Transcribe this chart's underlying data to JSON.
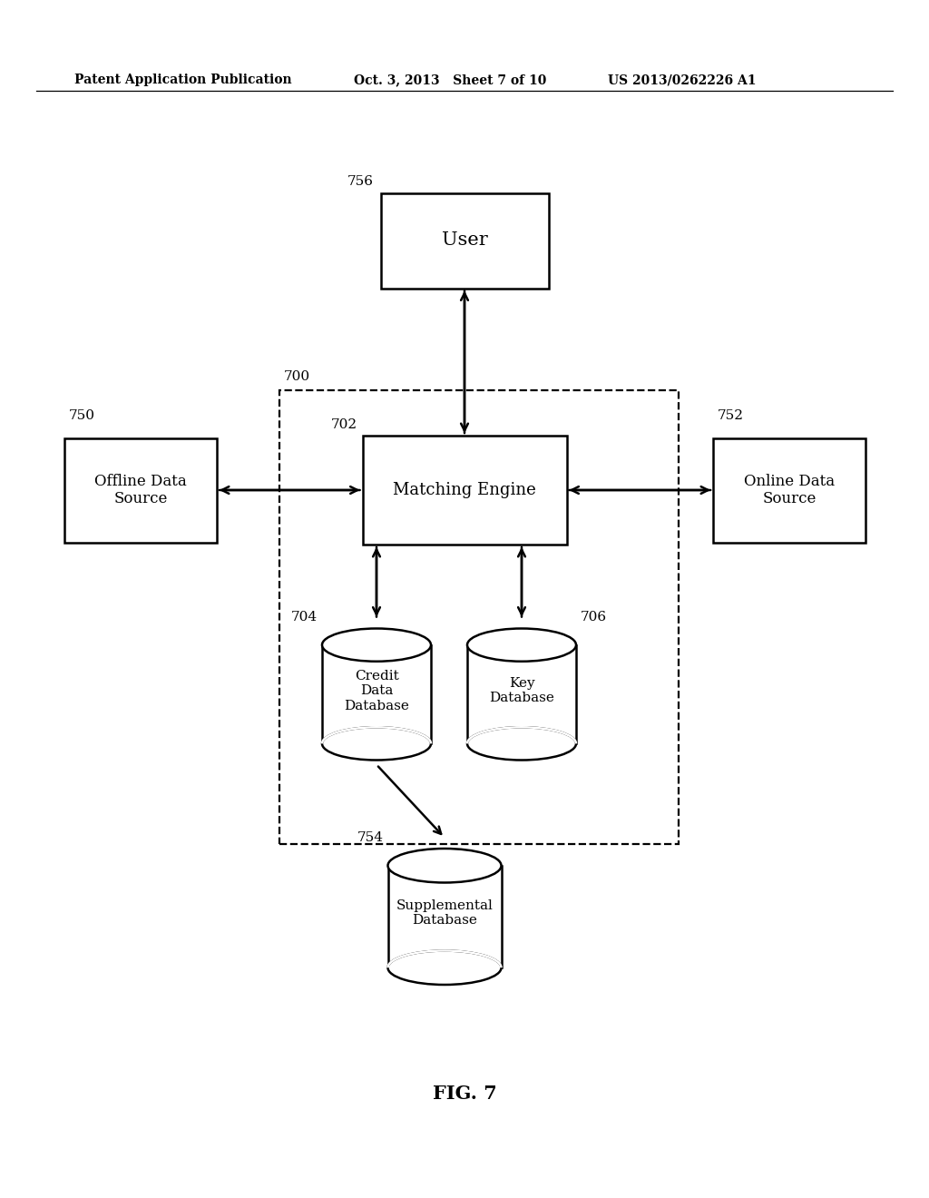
{
  "bg_color": "#ffffff",
  "header_left": "Patent Application Publication",
  "header_mid": "Oct. 3, 2013   Sheet 7 of 10",
  "header_right": "US 2013/0262226 A1",
  "fig_label": "FIG. 7",
  "user_label": "User",
  "user_id": "756",
  "matching_label": "Matching Engine",
  "matching_id": "702",
  "offline_label": "Offline Data\nSource",
  "offline_id": "750",
  "online_label": "Online Data\nSource",
  "online_id": "752",
  "credit_label": "Credit\nData\nDatabase",
  "credit_id": "704",
  "key_label": "Key\nDatabase",
  "key_id": "706",
  "supp_label": "Supplemental\nDatabase",
  "supp_id": "754",
  "system_id": "700"
}
